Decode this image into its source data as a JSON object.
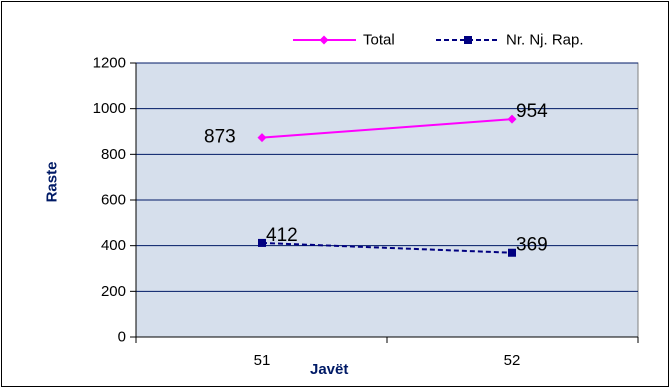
{
  "chart_data": {
    "type": "line",
    "x": [
      "51",
      "52"
    ],
    "xlabel": "Javët",
    "ylabel": "Raste",
    "ylim": [
      0,
      1200
    ],
    "yticks": [
      "0",
      "200",
      "400",
      "600",
      "800",
      "1000",
      "1200"
    ],
    "grid": true,
    "legend_position": "top-right",
    "series": [
      {
        "name": "Total",
        "values": [
          873,
          954
        ],
        "labels": [
          "873",
          "954"
        ],
        "color": "#ff00ff",
        "line_style": "solid",
        "marker": "diamond"
      },
      {
        "name": "Nr. Nj. Rap.",
        "values": [
          412,
          369
        ],
        "labels": [
          "412",
          "369"
        ],
        "color": "#000080",
        "line_style": "dashed",
        "marker": "square"
      }
    ],
    "plot_background": "#d6dfec",
    "gridline_color": "#001a66"
  }
}
